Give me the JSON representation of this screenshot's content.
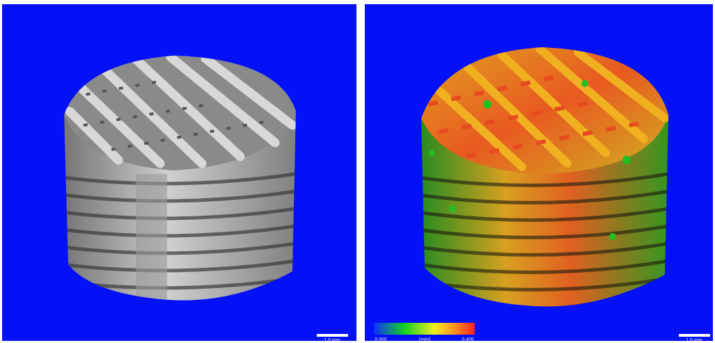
{
  "left_panel": {
    "scale_bar_label": "1.0 mm"
  },
  "right_panel": {
    "scale_bar_label": "1.0 mm",
    "colorbar": {
      "min_label": "0.000",
      "unit_label": "[mm]",
      "max_label": "0.400"
    }
  }
}
